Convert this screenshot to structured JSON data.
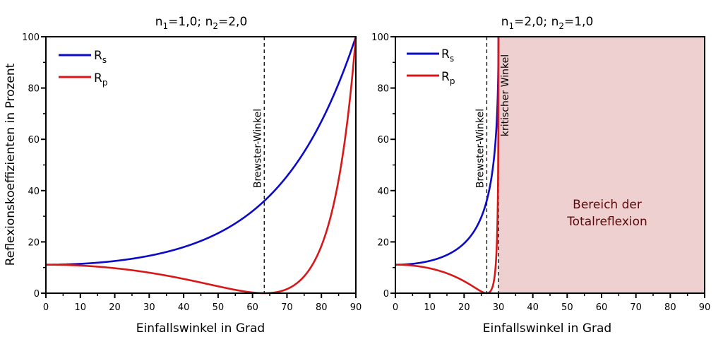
{
  "colors": {
    "rs": "#0a0ac8",
    "rp": "#d81818",
    "tir_region": "#efd0d1",
    "region_text": "#5a0a0a",
    "axis": "#000000"
  },
  "ylabel": "Reflexionskoeffizienten in Prozent",
  "chart_data": [
    {
      "type": "line",
      "title": "n_1=1,0; n_2=2,0",
      "title_parts": {
        "n1_label": "n",
        "n1_sub": "1",
        "n1_val": "=1,0; ",
        "n2_label": "n",
        "n2_sub": "2",
        "n2_val": "=2,0"
      },
      "n1": 1.0,
      "n2": 2.0,
      "xlabel": "Einfallswinkel in Grad",
      "ylabel": "Reflexionskoeffizienten in Prozent",
      "xlim": [
        0,
        90
      ],
      "ylim": [
        0,
        100
      ],
      "xticks": [
        0,
        10,
        20,
        30,
        40,
        50,
        60,
        70,
        80,
        90
      ],
      "yticks": [
        0,
        20,
        40,
        60,
        80,
        100
      ],
      "grid": false,
      "legend": {
        "placement": "top-left",
        "entries": [
          {
            "label": "R",
            "sub": "s",
            "series": "Rs"
          },
          {
            "label": "R",
            "sub": "p",
            "series": "Rp"
          }
        ]
      },
      "x": [
        0,
        10,
        20,
        30,
        40,
        50,
        60,
        63.4,
        70,
        80,
        90
      ],
      "series": [
        {
          "name": "Rs",
          "values": [
            11.1,
            11.6,
            13.0,
            15.6,
            19.8,
            26.4,
            36.8,
            40.0,
            52.5,
            72.8,
            100
          ]
        },
        {
          "name": "Rp",
          "values": [
            11.1,
            10.6,
            9.3,
            7.3,
            4.8,
            2.2,
            0.2,
            0.0,
            1.4,
            24.0,
            100
          ]
        }
      ],
      "annotations": [
        {
          "type": "vline",
          "x": 63.4,
          "label": "Brewster-Winkel"
        }
      ]
    },
    {
      "type": "line",
      "title": "n_1=2,0; n_2=1,0",
      "title_parts": {
        "n1_label": "n",
        "n1_sub": "1",
        "n1_val": "=2,0; ",
        "n2_label": "n",
        "n2_sub": "2",
        "n2_val": "=1,0"
      },
      "n1": 2.0,
      "n2": 1.0,
      "xlabel": "Einfallswinkel in Grad",
      "ylabel": "",
      "xlim": [
        0,
        90
      ],
      "ylim": [
        0,
        100
      ],
      "xticks": [
        0,
        10,
        20,
        30,
        40,
        50,
        60,
        70,
        80,
        90
      ],
      "yticks": [
        0,
        20,
        40,
        60,
        80,
        100
      ],
      "grid": false,
      "legend": {
        "placement": "top-left",
        "entries": [
          {
            "label": "R",
            "sub": "s",
            "series": "Rs"
          },
          {
            "label": "R",
            "sub": "p",
            "series": "Rp"
          }
        ]
      },
      "x": [
        0,
        10,
        20,
        25,
        26.6,
        28,
        29,
        30
      ],
      "series": [
        {
          "name": "Rs",
          "values": [
            11.1,
            13.0,
            22.6,
            32.2,
            36.8,
            43.5,
            54.0,
            100
          ]
        },
        {
          "name": "Rp",
          "values": [
            11.1,
            9.3,
            3.2,
            0.5,
            0.0,
            1.5,
            13.0,
            100
          ]
        }
      ],
      "annotations": [
        {
          "type": "vline",
          "x": 26.6,
          "label": "Brewster-Winkel"
        },
        {
          "type": "vline",
          "x": 30.0,
          "label": "kritischer Winkel"
        },
        {
          "type": "region",
          "x_range": [
            30,
            90
          ],
          "label_line1": "Bereich der",
          "label_line2": "Totalreflexion"
        }
      ]
    }
  ]
}
